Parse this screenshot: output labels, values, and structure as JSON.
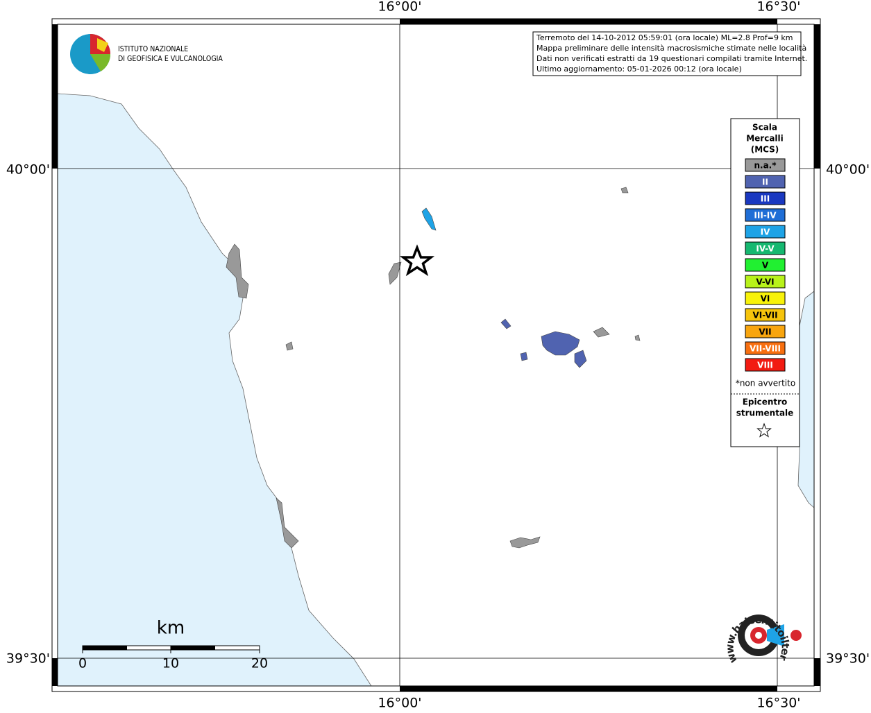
{
  "header": {
    "institute": [
      "ISTITUTO NAZIONALE",
      "DI GEOFISICA E VULCANOLOGIA"
    ]
  },
  "info": [
    "Terremoto del 14-10-2012 05:59:01 (ora locale) ML=2.8 Prof=9 km",
    "Mappa preliminare delle intensità macrosismiche stimate nelle località",
    "Dati non verificati estratti da 19 questionari compilati tramite Internet.",
    "Ultimo aggiornamento: 05-01-2026 00:12 (ora locale)"
  ],
  "axes": {
    "lon": [
      "16°00'",
      "16°30'"
    ],
    "lat": [
      "40°00'",
      "39°30'"
    ]
  },
  "legend": {
    "title": [
      "Scala",
      "Mercalli",
      "(MCS)"
    ],
    "items": [
      {
        "label": "n.a.*",
        "color": "#999999"
      },
      {
        "label": "II",
        "color": "#5063b0"
      },
      {
        "label": "III",
        "color": "#1a38c0"
      },
      {
        "label": "III-IV",
        "color": "#1f6ed6"
      },
      {
        "label": "IV",
        "color": "#1ea3e6"
      },
      {
        "label": "IV-V",
        "color": "#16b870"
      },
      {
        "label": "V",
        "color": "#21f031"
      },
      {
        "label": "V-VI",
        "color": "#b8f21a"
      },
      {
        "label": "VI",
        "color": "#f8f20a"
      },
      {
        "label": "VI-VII",
        "color": "#f6c40c"
      },
      {
        "label": "VII",
        "color": "#f8a50e"
      },
      {
        "label": "VII-VIII",
        "color": "#f76f10"
      },
      {
        "label": "VIII",
        "color": "#f21b12"
      }
    ],
    "note": "*non avvertito",
    "epicenter": [
      "Epicentro",
      "strumentale"
    ]
  },
  "scale_bar": {
    "unit": "km",
    "ticks": [
      "0",
      "10",
      "20"
    ]
  },
  "watermark": "www.haisentitoilterremoto.it"
}
